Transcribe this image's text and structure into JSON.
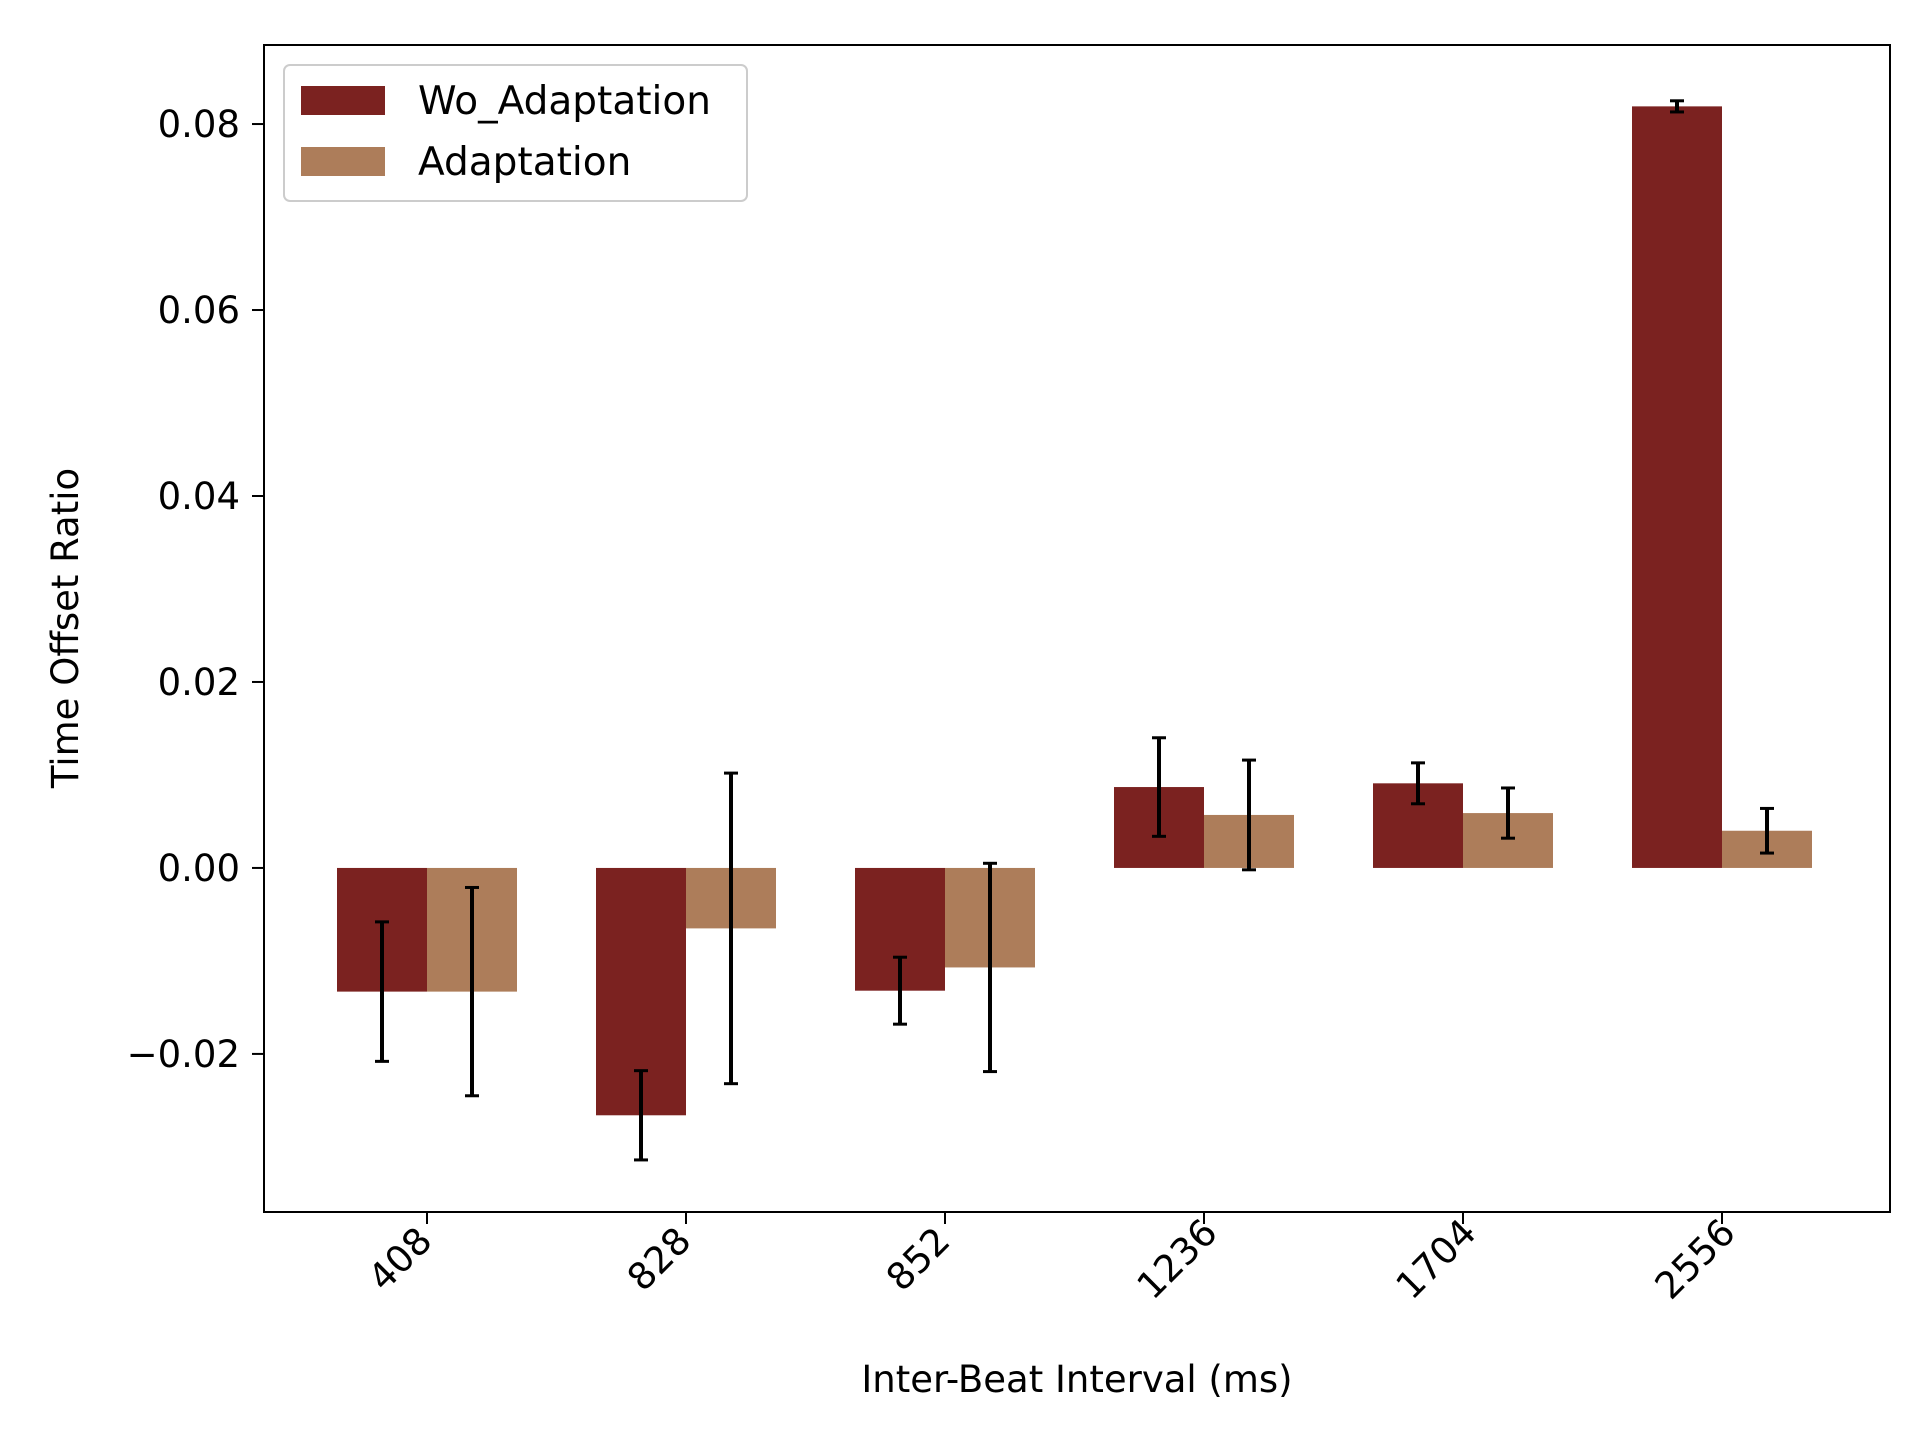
{
  "chart_data": {
    "type": "bar",
    "title": "",
    "xlabel": "Inter-Beat Interval (ms)",
    "ylabel": "Time Offset Ratio",
    "ylim": [
      -0.037,
      0.0885
    ],
    "yticks": [
      -0.02,
      0.0,
      0.02,
      0.04,
      0.06,
      0.08
    ],
    "ytick_labels": [
      "−0.02",
      "0.00",
      "0.02",
      "0.04",
      "0.06",
      "0.08"
    ],
    "categories": [
      "408",
      "828",
      "852",
      "1236",
      "1704",
      "2556"
    ],
    "legend_position": "top-left",
    "series": [
      {
        "name": "Wo_Adaptation",
        "color": "#7b2220",
        "values": [
          -0.0133,
          -0.0266,
          -0.0132,
          0.0087,
          0.0091,
          0.0819
        ],
        "errors": [
          0.0075,
          0.0048,
          0.0036,
          0.0053,
          0.0022,
          0.0006
        ]
      },
      {
        "name": "Adaptation",
        "color": "#ad7d5a",
        "values": [
          -0.0133,
          -0.0065,
          -0.0107,
          0.0057,
          0.0059,
          0.004
        ],
        "errors": [
          0.0112,
          0.0167,
          0.0112,
          0.0059,
          0.0027,
          0.0024
        ]
      }
    ]
  }
}
